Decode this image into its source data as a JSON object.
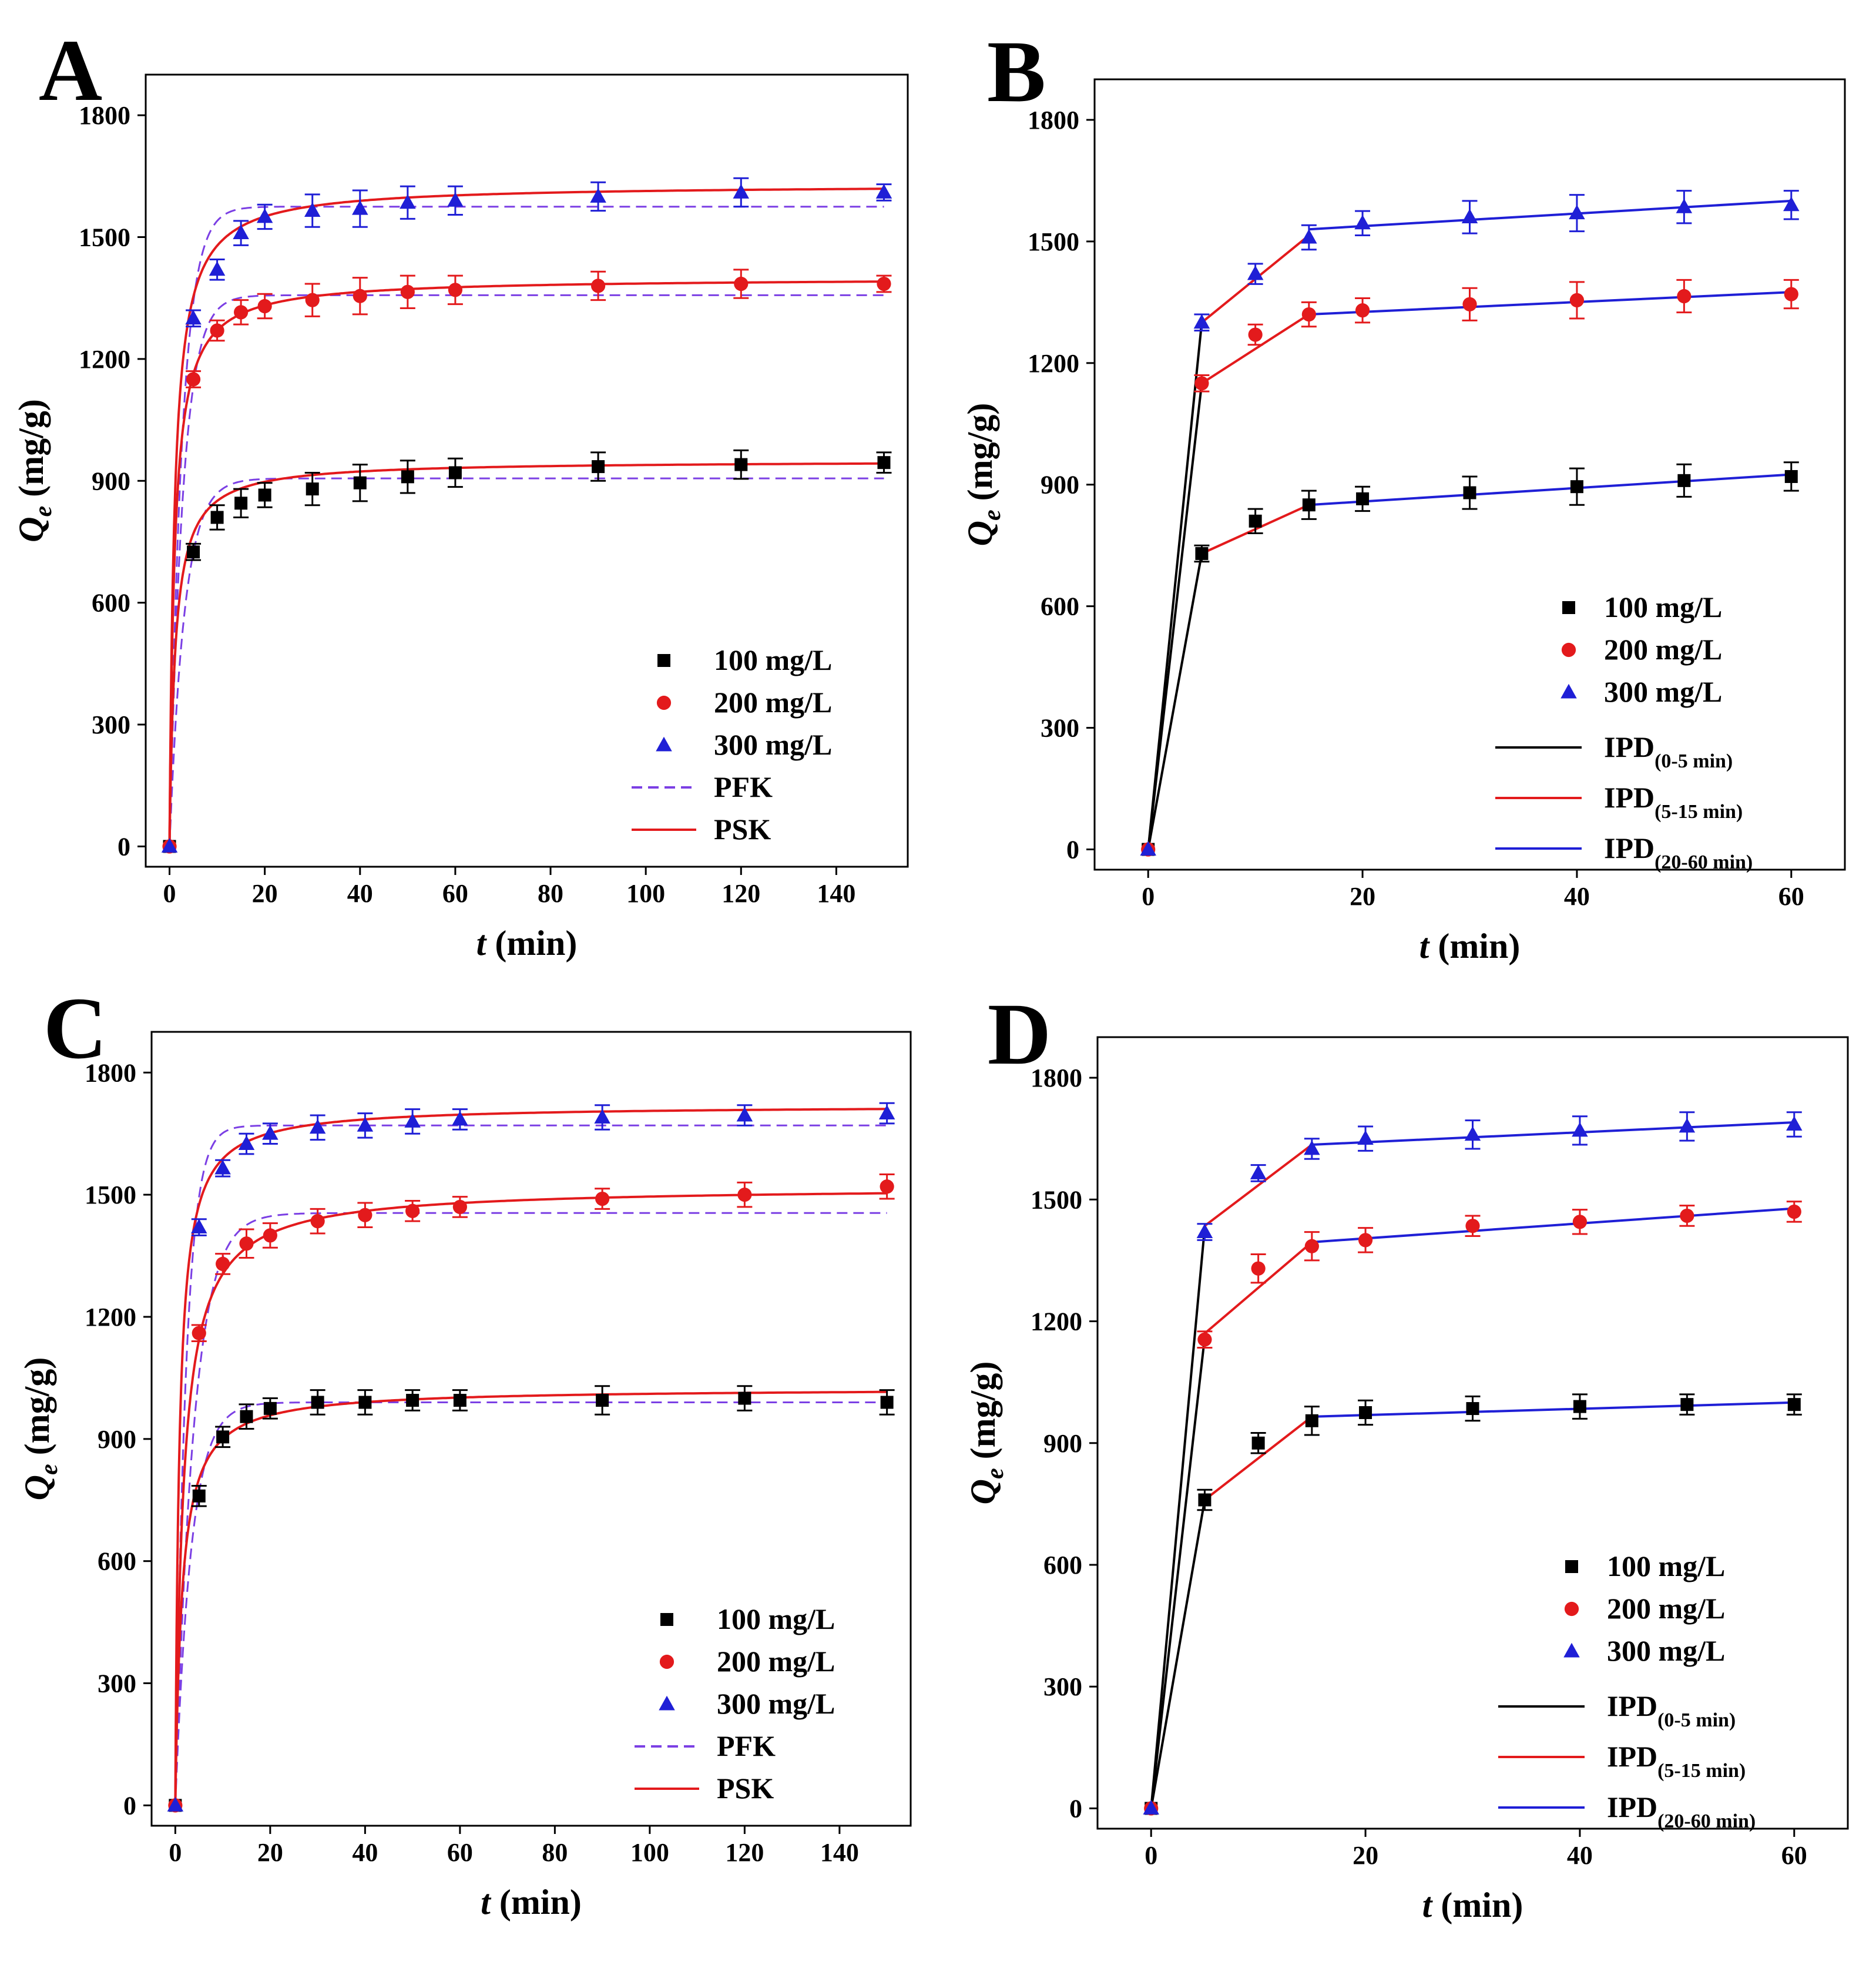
{
  "colors": {
    "100 mg/L": "#000000",
    "200 mg/L": "#e31a1c",
    "300 mg/L": "#1f1fd6",
    "PFK": "#7b3fe4",
    "PSK": "#e31a1c",
    "IPD(0-5 min)": "#000000",
    "IPD(5-15 min)": "#e31a1c",
    "IPD(20-60 min)": "#1f1fd6"
  },
  "chart_data": [
    {
      "panel": "A",
      "type": "scatter",
      "xlabel_italic": "t",
      "xlabel_rest": " (min)",
      "ylabel_main": "Q",
      "ylabel_sub": "e",
      "ylabel_rest": " (mg/g)",
      "xlim": [
        -5,
        155
      ],
      "ylim": [
        -50,
        1900
      ],
      "xticks": [
        0,
        20,
        40,
        60,
        80,
        100,
        120,
        140
      ],
      "yticks": [
        0,
        300,
        600,
        900,
        1200,
        1500,
        1800
      ],
      "x": [
        0,
        5,
        10,
        15,
        20,
        30,
        40,
        50,
        60,
        90,
        120,
        150
      ],
      "series": [
        {
          "name": "100 mg/L",
          "marker": "square",
          "values": [
            0,
            725,
            810,
            845,
            865,
            880,
            895,
            910,
            920,
            935,
            940,
            945
          ],
          "err": [
            0,
            20,
            30,
            35,
            30,
            40,
            45,
            40,
            35,
            35,
            35,
            25
          ]
        },
        {
          "name": "200 mg/L",
          "marker": "circle",
          "values": [
            0,
            1150,
            1270,
            1315,
            1330,
            1345,
            1355,
            1365,
            1370,
            1380,
            1385,
            1385
          ],
          "err": [
            0,
            20,
            25,
            30,
            30,
            40,
            45,
            40,
            35,
            35,
            35,
            20
          ]
        },
        {
          "name": "300 mg/L",
          "marker": "triangle",
          "values": [
            0,
            1300,
            1420,
            1510,
            1550,
            1565,
            1570,
            1585,
            1590,
            1600,
            1610,
            1610
          ],
          "err": [
            0,
            20,
            25,
            30,
            30,
            40,
            45,
            40,
            35,
            35,
            35,
            20
          ]
        }
      ],
      "fits": [
        {
          "name": "PFK",
          "style": "dashed",
          "curves": [
            {
              "qe": 906,
              "k": 0.32
            },
            {
              "qe": 1357,
              "k": 0.36
            },
            {
              "qe": 1575,
              "k": 0.38
            }
          ]
        },
        {
          "name": "PSK",
          "style": "solid",
          "curves": [
            {
              "qe": 950,
              "k": 0.0009
            },
            {
              "qe": 1400,
              "k": 0.0007
            },
            {
              "qe": 1630,
              "k": 0.0006
            }
          ]
        }
      ],
      "legend": [
        "100 mg/L",
        "200 mg/L",
        "300 mg/L",
        "PFK",
        "PSK"
      ],
      "legend_position": "bottom-right"
    },
    {
      "panel": "B",
      "type": "line",
      "xlabel_italic": "t",
      "xlabel_rest": " (min)",
      "ylabel_main": "Q",
      "ylabel_sub": "e",
      "ylabel_rest": " (mg/g)",
      "xlim": [
        -5,
        65
      ],
      "ylim": [
        -50,
        1900
      ],
      "xticks": [
        0,
        20,
        40,
        60
      ],
      "yticks": [
        0,
        300,
        600,
        900,
        1200,
        1500,
        1800
      ],
      "x": [
        0,
        5,
        10,
        15,
        20,
        30,
        40,
        50,
        60
      ],
      "series": [
        {
          "name": "100 mg/L",
          "marker": "square",
          "values": [
            0,
            730,
            810,
            850,
            865,
            880,
            895,
            910,
            920
          ],
          "err": [
            0,
            20,
            30,
            35,
            30,
            40,
            45,
            40,
            35
          ]
        },
        {
          "name": "200 mg/L",
          "marker": "circle",
          "values": [
            0,
            1150,
            1270,
            1320,
            1330,
            1345,
            1355,
            1365,
            1370
          ],
          "err": [
            0,
            20,
            25,
            30,
            30,
            40,
            45,
            40,
            35
          ]
        },
        {
          "name": "300 mg/L",
          "marker": "triangle",
          "values": [
            0,
            1300,
            1420,
            1510,
            1545,
            1560,
            1570,
            1585,
            1590
          ],
          "err": [
            0,
            20,
            25,
            30,
            30,
            40,
            45,
            40,
            35
          ]
        }
      ],
      "segments": [
        {
          "name": "IPD(0-5 min)",
          "lines": [
            [
              [
                0,
                0
              ],
              [
                5,
                730
              ]
            ],
            [
              [
                0,
                0
              ],
              [
                5,
                1150
              ]
            ],
            [
              [
                0,
                0
              ],
              [
                5,
                1300
              ]
            ]
          ]
        },
        {
          "name": "IPD(5-15 min)",
          "lines": [
            [
              [
                5,
                730
              ],
              [
                15,
                850
              ]
            ],
            [
              [
                5,
                1150
              ],
              [
                15,
                1320
              ]
            ],
            [
              [
                5,
                1300
              ],
              [
                15,
                1515
              ]
            ]
          ]
        },
        {
          "name": "IPD(20-60 min)",
          "lines": [
            [
              [
                15,
                850
              ],
              [
                60,
                925
              ]
            ],
            [
              [
                15,
                1320
              ],
              [
                60,
                1375
              ]
            ],
            [
              [
                15,
                1530
              ],
              [
                60,
                1600
              ]
            ]
          ]
        }
      ],
      "legend": [
        {
          "label": "100 mg/L",
          "sub": ""
        },
        {
          "label": "200 mg/L",
          "sub": ""
        },
        {
          "label": "300 mg/L",
          "sub": ""
        },
        {
          "label": "IPD",
          "sub": "(0-5 min)"
        },
        {
          "label": "IPD",
          "sub": "(5-15 min)"
        },
        {
          "label": "IPD",
          "sub": "(20-60 min)"
        }
      ],
      "legend_position": "bottom-right"
    },
    {
      "panel": "C",
      "type": "scatter",
      "xlabel_italic": "t",
      "xlabel_rest": " (min)",
      "ylabel_main": "Q",
      "ylabel_sub": "e",
      "ylabel_rest": " (mg/g)",
      "xlim": [
        -5,
        155
      ],
      "ylim": [
        -50,
        1900
      ],
      "xticks": [
        0,
        20,
        40,
        60,
        80,
        100,
        120,
        140
      ],
      "yticks": [
        0,
        300,
        600,
        900,
        1200,
        1500,
        1800
      ],
      "x": [
        0,
        5,
        10,
        15,
        20,
        30,
        40,
        50,
        60,
        90,
        120,
        150
      ],
      "series": [
        {
          "name": "100 mg/L",
          "marker": "square",
          "values": [
            0,
            760,
            905,
            955,
            975,
            990,
            990,
            995,
            995,
            995,
            1000,
            990
          ],
          "err": [
            0,
            25,
            25,
            30,
            25,
            30,
            30,
            25,
            25,
            35,
            30,
            30
          ]
        },
        {
          "name": "200 mg/L",
          "marker": "circle",
          "values": [
            0,
            1160,
            1330,
            1380,
            1400,
            1435,
            1450,
            1460,
            1470,
            1490,
            1500,
            1520
          ],
          "err": [
            0,
            20,
            25,
            35,
            30,
            30,
            30,
            25,
            25,
            25,
            30,
            30
          ]
        },
        {
          "name": "300 mg/L",
          "marker": "triangle",
          "values": [
            0,
            1420,
            1565,
            1625,
            1650,
            1665,
            1670,
            1680,
            1685,
            1690,
            1695,
            1700
          ],
          "err": [
            0,
            20,
            20,
            25,
            25,
            30,
            30,
            30,
            25,
            30,
            25,
            25
          ]
        }
      ],
      "fits": [
        {
          "name": "PFK",
          "style": "dashed",
          "curves": [
            {
              "qe": 990,
              "k": 0.3
            },
            {
              "qe": 1455,
              "k": 0.26
            },
            {
              "qe": 1670,
              "k": 0.45
            }
          ]
        },
        {
          "name": "PSK",
          "style": "solid",
          "curves": [
            {
              "qe": 1025,
              "k": 0.0007
            },
            {
              "qe": 1520,
              "k": 0.0004
            },
            {
              "qe": 1720,
              "k": 0.0007
            }
          ]
        }
      ],
      "legend": [
        "100 mg/L",
        "200 mg/L",
        "300 mg/L",
        "PFK",
        "PSK"
      ],
      "legend_position": "bottom-right"
    },
    {
      "panel": "D",
      "type": "line",
      "xlabel_italic": "t",
      "xlabel_rest": " (min)",
      "ylabel_main": "Q",
      "ylabel_sub": "e",
      "ylabel_rest": " (mg/g)",
      "xlim": [
        -5,
        65
      ],
      "ylim": [
        -50,
        1900
      ],
      "xticks": [
        0,
        20,
        40,
        60
      ],
      "yticks": [
        0,
        300,
        600,
        900,
        1200,
        1500,
        1800
      ],
      "x": [
        0,
        5,
        10,
        15,
        20,
        30,
        40,
        50,
        60
      ],
      "series": [
        {
          "name": "100 mg/L",
          "marker": "square",
          "values": [
            0,
            760,
            900,
            955,
            975,
            985,
            990,
            995,
            995
          ],
          "err": [
            0,
            25,
            25,
            35,
            30,
            30,
            30,
            25,
            25
          ]
        },
        {
          "name": "200 mg/L",
          "marker": "circle",
          "values": [
            0,
            1155,
            1330,
            1385,
            1400,
            1435,
            1445,
            1460,
            1470
          ],
          "err": [
            0,
            20,
            35,
            35,
            30,
            25,
            30,
            25,
            25
          ]
        },
        {
          "name": "300 mg/L",
          "marker": "triangle",
          "values": [
            0,
            1420,
            1565,
            1625,
            1650,
            1660,
            1670,
            1680,
            1685
          ],
          "err": [
            0,
            20,
            20,
            25,
            30,
            35,
            35,
            35,
            30
          ]
        }
      ],
      "segments": [
        {
          "name": "IPD(0-5 min)",
          "lines": [
            [
              [
                0,
                0
              ],
              [
                5,
                760
              ]
            ],
            [
              [
                0,
                0
              ],
              [
                5,
                1160
              ]
            ],
            [
              [
                0,
                0
              ],
              [
                5,
                1430
              ]
            ]
          ]
        },
        {
          "name": "IPD(5-15 min)",
          "lines": [
            [
              [
                5,
                760
              ],
              [
                15,
                965
              ]
            ],
            [
              [
                5,
                1170
              ],
              [
                15,
                1395
              ]
            ],
            [
              [
                5,
                1435
              ],
              [
                15,
                1635
              ]
            ]
          ]
        },
        {
          "name": "IPD(20-60 min)",
          "lines": [
            [
              [
                15,
                965
              ],
              [
                60,
                1000
              ]
            ],
            [
              [
                15,
                1395
              ],
              [
                60,
                1478
              ]
            ],
            [
              [
                15,
                1635
              ],
              [
                60,
                1690
              ]
            ]
          ]
        }
      ],
      "legend": [
        {
          "label": "100 mg/L",
          "sub": ""
        },
        {
          "label": "200 mg/L",
          "sub": ""
        },
        {
          "label": "300 mg/L",
          "sub": ""
        },
        {
          "label": "IPD",
          "sub": "(0-5 min)"
        },
        {
          "label": "IPD",
          "sub": "(5-15 min)"
        },
        {
          "label": "IPD",
          "sub": "(20-60 min)"
        }
      ],
      "legend_position": "bottom-right"
    }
  ]
}
